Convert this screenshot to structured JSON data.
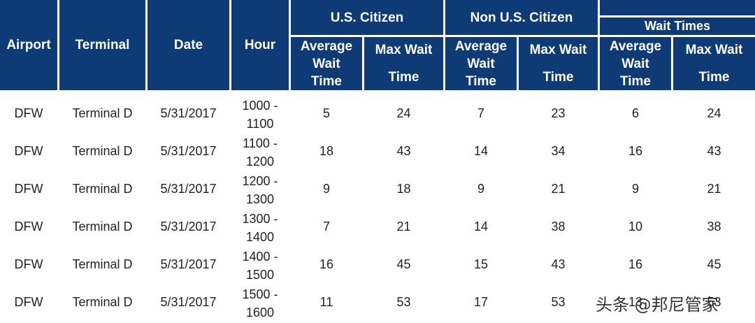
{
  "header": {
    "airport": "Airport",
    "terminal": "Terminal",
    "date": "Date",
    "hour": "Hour",
    "group_us": "U.S. Citizen",
    "group_non_us": "Non U.S. Citizen",
    "group_all": "",
    "wait_times": "Wait Times",
    "avg_line1": "Average",
    "avg_line2": "Wait",
    "avg_line3": "Time",
    "max_line1": "Max Wait",
    "max_line2": "Time"
  },
  "rows": [
    {
      "airport": "DFW",
      "terminal": "Terminal D",
      "date": "5/31/2017",
      "hour_start": "1000 -",
      "hour_end": "1100",
      "us_avg": "5",
      "us_max": "24",
      "non_avg": "7",
      "non_max": "23",
      "all_avg": "6",
      "all_max": "24"
    },
    {
      "airport": "DFW",
      "terminal": "Terminal D",
      "date": "5/31/2017",
      "hour_start": "1100 -",
      "hour_end": "1200",
      "us_avg": "18",
      "us_max": "43",
      "non_avg": "14",
      "non_max": "34",
      "all_avg": "16",
      "all_max": "43"
    },
    {
      "airport": "DFW",
      "terminal": "Terminal D",
      "date": "5/31/2017",
      "hour_start": "1200 -",
      "hour_end": "1300",
      "us_avg": "9",
      "us_max": "18",
      "non_avg": "9",
      "non_max": "21",
      "all_avg": "9",
      "all_max": "21"
    },
    {
      "airport": "DFW",
      "terminal": "Terminal D",
      "date": "5/31/2017",
      "hour_start": "1300 -",
      "hour_end": "1400",
      "us_avg": "7",
      "us_max": "21",
      "non_avg": "14",
      "non_max": "38",
      "all_avg": "10",
      "all_max": "38"
    },
    {
      "airport": "DFW",
      "terminal": "Terminal D",
      "date": "5/31/2017",
      "hour_start": "1400 -",
      "hour_end": "1500",
      "us_avg": "16",
      "us_max": "45",
      "non_avg": "15",
      "non_max": "43",
      "all_avg": "16",
      "all_max": "45"
    },
    {
      "airport": "DFW",
      "terminal": "Terminal D",
      "date": "5/31/2017",
      "hour_start": "1500 -",
      "hour_end": "1600",
      "us_avg": "11",
      "us_max": "53",
      "non_avg": "17",
      "non_max": "53",
      "all_avg": "13",
      "all_max": "53"
    }
  ],
  "watermark": "头条 @邦尼管家",
  "colors": {
    "header_bg": "#0e3a75",
    "header_text": "#ffffff",
    "body_text": "#222222"
  }
}
